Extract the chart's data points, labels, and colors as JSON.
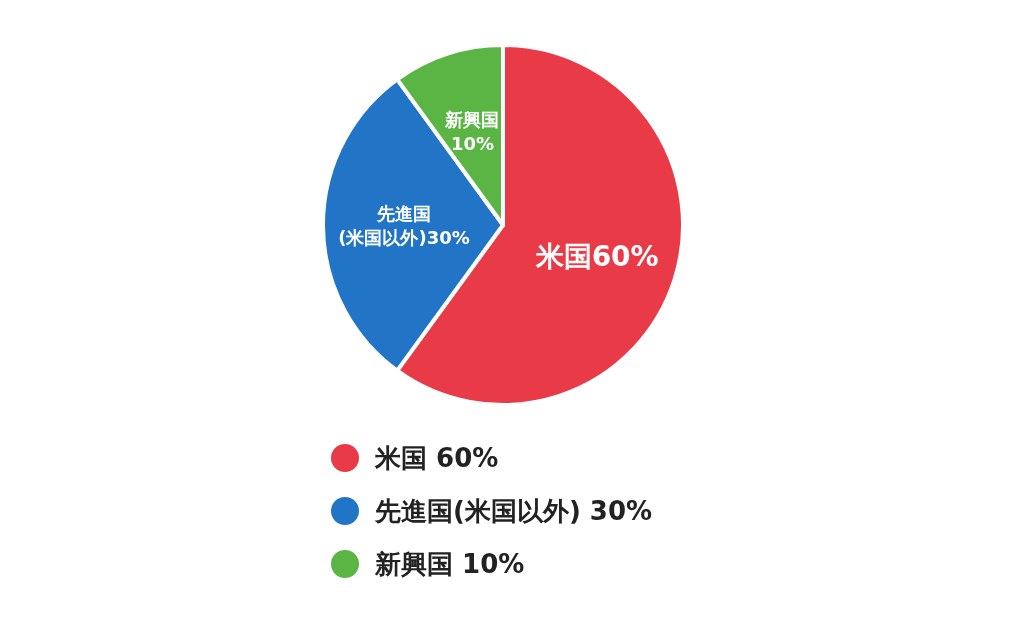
{
  "chart_data": {
    "type": "pie",
    "categories": [
      "米国 60%",
      "先進国(米国以外) 30%",
      "新興国 10%"
    ],
    "values": [
      60,
      30,
      10
    ],
    "colors": [
      "#e93a47",
      "#2274c7",
      "#5bb544"
    ],
    "value_labels": [
      "米国60%",
      "先進国\n(米国以外)30%",
      "新興国\n10%"
    ],
    "legend": "bottom"
  }
}
